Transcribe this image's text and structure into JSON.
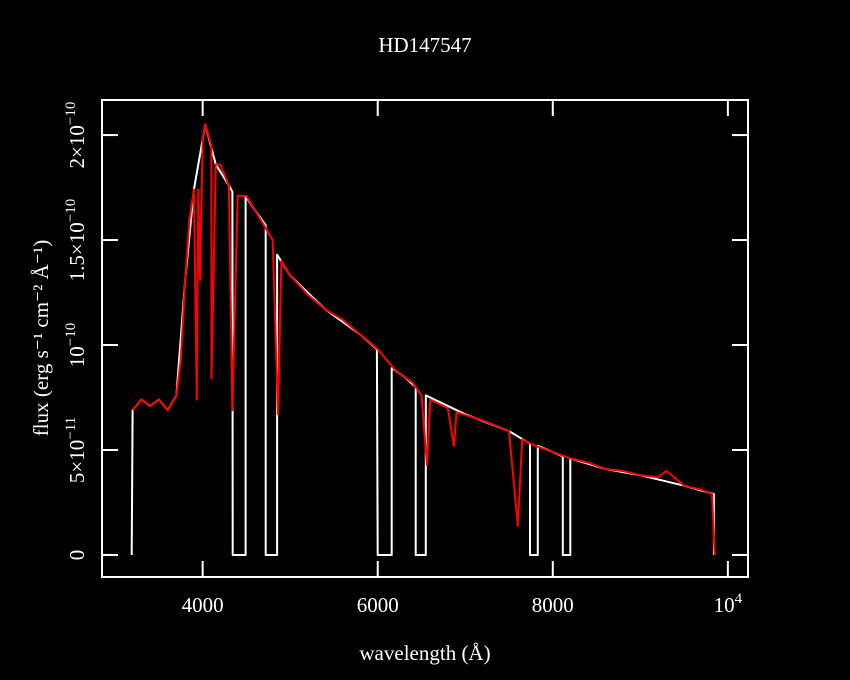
{
  "chart_data": {
    "type": "line",
    "title": "HD147547",
    "xlabel": "wavelength (Å)",
    "ylabel": "flux (erg s⁻¹ cm⁻² Å⁻¹)",
    "xlim": [
      2850,
      10230
    ],
    "ylim": [
      -1.05e-11,
      2.167e-10
    ],
    "xticks": [
      4000,
      6000,
      8000,
      {
        "value": 10000,
        "label": "10",
        "exponent": "4"
      }
    ],
    "yticks": [
      0,
      {
        "value": 5e-11,
        "label": "5×10",
        "exponent": "−11"
      },
      {
        "value": 1e-10,
        "label": "10",
        "exponent": "−10"
      },
      {
        "value": 1.5e-10,
        "label": "1.5×10",
        "exponent": "−10"
      },
      {
        "value": 2e-10,
        "label": "2×10",
        "exponent": "−10"
      }
    ],
    "series": [
      {
        "color": "#ffffff",
        "x": [
          3189,
          3200,
          3300,
          3400,
          3500,
          3600,
          3700,
          3800,
          3900,
          4000,
          4030,
          4150,
          4300,
          4340,
          4343,
          4491,
          4491,
          4600,
          4720,
          4720,
          4850,
          4850,
          5000,
          5400,
          5800,
          5990,
          6000,
          6160,
          6160,
          6300,
          6434,
          6434,
          6549,
          6549,
          7000,
          7500,
          7740,
          7740,
          7829,
          7829,
          8000,
          8114,
          8114,
          8200,
          8200,
          8600,
          9000,
          9500,
          9840,
          9840
        ],
        "values": [
          0,
          6.9e-11,
          7.4e-11,
          7.1e-11,
          7.4e-11,
          6.9e-11,
          7.6e-11,
          1.31e-10,
          1.74e-10,
          1.98e-10,
          2.05e-10,
          1.86e-10,
          1.76e-10,
          1.73e-10,
          0,
          0,
          1.71e-10,
          1.64e-10,
          1.57e-10,
          0,
          0,
          1.43e-10,
          1.33e-10,
          1.17e-10,
          1.05e-10,
          9.8e-11,
          0,
          0,
          8.9e-11,
          8.5e-11,
          8e-11,
          0,
          0,
          7.6e-11,
          6.7e-11,
          5.9e-11,
          5.3e-11,
          0,
          0,
          5.2e-11,
          4.9e-11,
          4.7e-11,
          0,
          0,
          4.6e-11,
          4.1e-11,
          3.8e-11,
          3.3e-11,
          2.9e-11,
          0
        ]
      },
      {
        "color": "#ff0000",
        "x": [
          3200,
          3300,
          3400,
          3500,
          3600,
          3700,
          3750,
          3800,
          3850,
          3900,
          3933,
          3950,
          3970,
          4000,
          4030,
          4100,
          4101,
          4150,
          4200,
          4300,
          4340,
          4400,
          4500,
          4600,
          4700,
          4800,
          4861,
          4900,
          5000,
          5200,
          5400,
          5600,
          5800,
          6000,
          6200,
          6400,
          6500,
          6563,
          6600,
          6800,
          6870,
          6900,
          7200,
          7500,
          7600,
          7650,
          7800,
          8000,
          8200,
          8400,
          8600,
          8800,
          9000,
          9200,
          9300,
          9500,
          9700,
          9820,
          9850
        ],
        "values": [
          6.9e-11,
          7.4e-11,
          7.1e-11,
          7.4e-11,
          6.9e-11,
          7.6e-11,
          9.3e-11,
          1.31e-10,
          1.6e-10,
          1.74e-10,
          7.4e-11,
          1.74e-10,
          1.31e-10,
          1.98e-10,
          2.05e-10,
          1.95e-10,
          8.4e-11,
          1.86e-10,
          1.86e-10,
          1.76e-10,
          6.9e-11,
          1.71e-10,
          1.71e-10,
          1.64e-10,
          1.57e-10,
          1.5e-10,
          6.7e-11,
          1.4e-10,
          1.33e-10,
          1.24e-10,
          1.17e-10,
          1.12e-10,
          1.05e-10,
          9.8e-11,
          8.8e-11,
          8.2e-11,
          7.6e-11,
          4.3e-11,
          7.4e-11,
          7e-11,
          5.2e-11,
          6.8e-11,
          6.4e-11,
          5.9e-11,
          1.4e-11,
          5.5e-11,
          5.2e-11,
          4.9e-11,
          4.6e-11,
          4.4e-11,
          4.1e-11,
          4e-11,
          3.8e-11,
          3.7e-11,
          4e-11,
          3.3e-11,
          3.1e-11,
          2.9e-11,
          0
        ]
      }
    ]
  }
}
